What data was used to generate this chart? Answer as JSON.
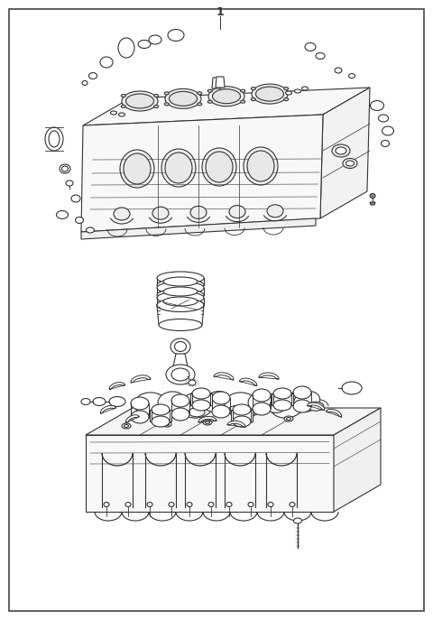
{
  "title_number": "1",
  "border_color": "#444444",
  "line_color": "#333333",
  "background_color": "#ffffff",
  "figsize": [
    4.8,
    6.87
  ],
  "dpi": 100
}
